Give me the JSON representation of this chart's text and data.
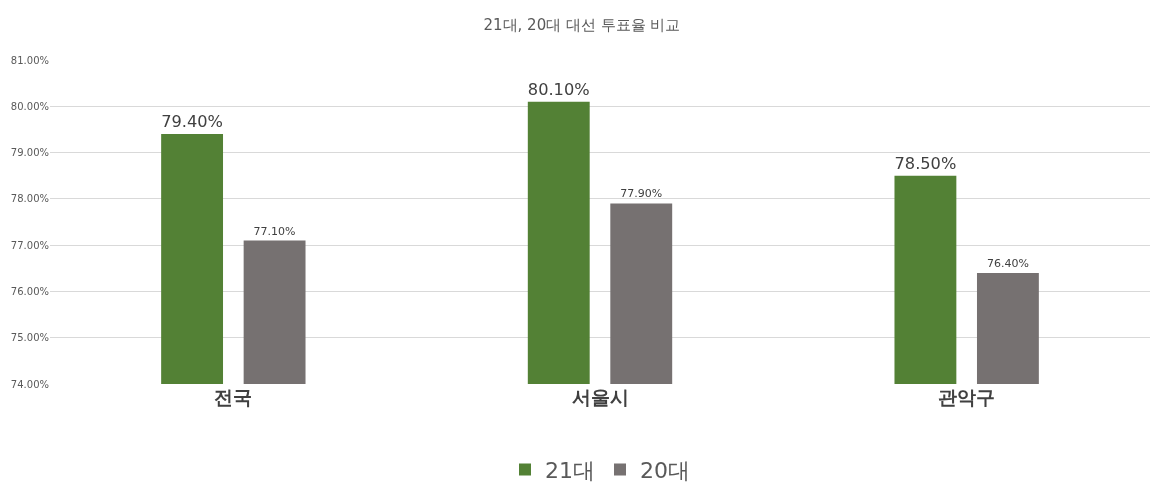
{
  "chart_data": {
    "type": "bar",
    "title": "21대, 20대 대선 투표율 비교",
    "categories": [
      "전국",
      "서울시",
      "관악구"
    ],
    "series": [
      {
        "name": "21대",
        "color": "#538135",
        "values": [
          79.4,
          80.1,
          78.5
        ],
        "value_labels": [
          "79.40%",
          "80.10%",
          "78.50%"
        ]
      },
      {
        "name": "20대",
        "color": "#767171",
        "values": [
          77.1,
          77.9,
          76.4
        ],
        "value_labels": [
          "77.10%",
          "77.90%",
          "76.40%"
        ]
      }
    ],
    "ylim": [
      74,
      81
    ],
    "yticks": [
      {
        "value": 74,
        "label": "74.00%"
      },
      {
        "value": 75,
        "label": "75.00%"
      },
      {
        "value": 76,
        "label": "76.00%"
      },
      {
        "value": 77,
        "label": "77.00%"
      },
      {
        "value": 78,
        "label": "78.00%"
      },
      {
        "value": 79,
        "label": "79.00%"
      },
      {
        "value": 80,
        "label": "80.00%"
      },
      {
        "value": 81,
        "label": "81.00%"
      }
    ],
    "grid": "y",
    "legend": "bottom"
  }
}
